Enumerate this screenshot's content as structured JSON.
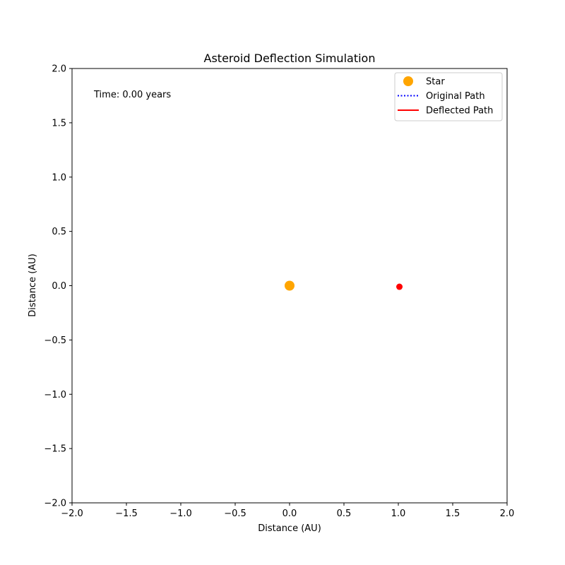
{
  "chart_data": {
    "type": "scatter",
    "title": "Asteroid Deflection Simulation",
    "xlabel": "Distance (AU)",
    "ylabel": "Distance (AU)",
    "xlim": [
      -2.0,
      2.0
    ],
    "ylim": [
      -2.0,
      2.0
    ],
    "xticks": [
      -2.0,
      -1.5,
      -1.0,
      -0.5,
      0.0,
      0.5,
      1.0,
      1.5,
      2.0
    ],
    "yticks": [
      -2.0,
      -1.5,
      -1.0,
      -0.5,
      0.0,
      0.5,
      1.0,
      1.5,
      2.0
    ],
    "xtick_labels": [
      "−2.0",
      "−1.5",
      "−1.0",
      "−0.5",
      "0.0",
      "0.5",
      "1.0",
      "1.5",
      "2.0"
    ],
    "ytick_labels": [
      "−2.0",
      "−1.5",
      "−1.0",
      "−0.5",
      "0.0",
      "0.5",
      "1.0",
      "1.5",
      "2.0"
    ],
    "grid": false,
    "legend_position": "top-right",
    "annotation": "Time: 0.00 years",
    "series": [
      {
        "name": "Star",
        "kind": "marker",
        "color": "#ffa500",
        "points": [
          [
            0.0,
            0.0
          ]
        ]
      },
      {
        "name": "Original Path",
        "kind": "line",
        "style": "dotted",
        "color": "#0000ff",
        "points": []
      },
      {
        "name": "Deflected Path",
        "kind": "line",
        "style": "solid",
        "color": "#ff0000",
        "points": []
      }
    ],
    "asteroid": {
      "color": "#ff0000",
      "points": [
        [
          1.01,
          -0.01
        ]
      ]
    }
  }
}
